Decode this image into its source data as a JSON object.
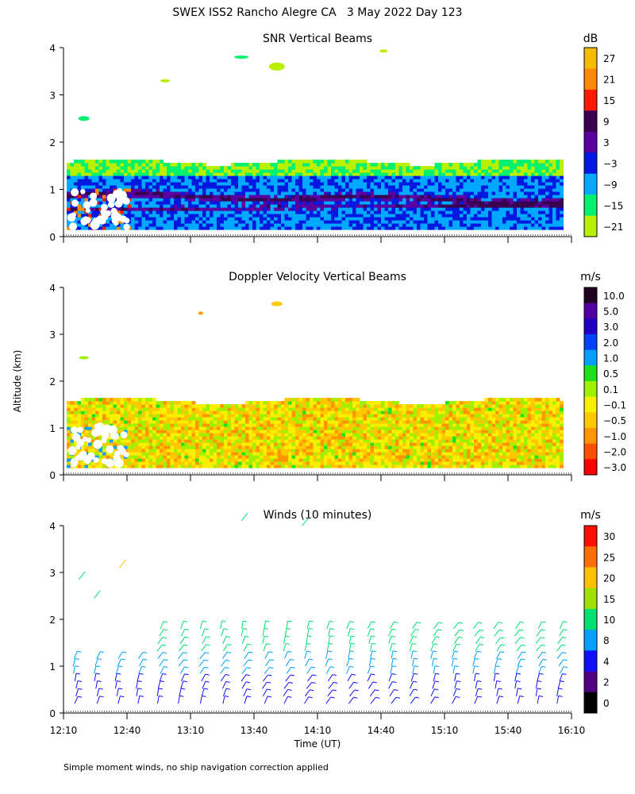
{
  "figure": {
    "title": "SWEX ISS2 Rancho Alegre CA   3 May 2022 Day 123",
    "ylabel": "Altitude (km)",
    "xlabel": "Time (UT)",
    "footnote": "Simple moment winds, no ship navigation correction applied"
  },
  "chart_data": [
    {
      "type": "heatmap",
      "title": "SNR Vertical Beams",
      "x_range": [
        "12:10",
        "16:10"
      ],
      "x_ticks": [
        "12:10",
        "12:40",
        "13:10",
        "13:40",
        "14:10",
        "14:40",
        "15:10",
        "15:40",
        "16:10"
      ],
      "x_tick_labels_shown": false,
      "ylim": [
        0,
        4
      ],
      "y_ticks": [
        "0",
        "1",
        "2",
        "3",
        "4"
      ],
      "colorbar": {
        "unit": "dB",
        "labels": [
          "27",
          "21",
          "15",
          "9",
          "3",
          "−3",
          "−9",
          "−15",
          "−21"
        ],
        "colors": [
          "#f4bc00",
          "#ff8a00",
          "#ff1a00",
          "#3a0050",
          "#5a00a0",
          "#0018e0",
          "#00a8ff",
          "#00f070",
          "#b8f000"
        ]
      }
    },
    {
      "type": "heatmap",
      "title": "Doppler Velocity Vertical Beams",
      "x_range": [
        "12:10",
        "16:10"
      ],
      "x_ticks": [
        "12:10",
        "12:40",
        "13:10",
        "13:40",
        "14:10",
        "14:40",
        "15:10",
        "15:40",
        "16:10"
      ],
      "x_tick_labels_shown": false,
      "ylim": [
        0,
        4
      ],
      "y_ticks": [
        "0",
        "1",
        "2",
        "3",
        "4"
      ],
      "colorbar": {
        "unit": "m/s",
        "labels": [
          "10.0",
          "5.0",
          "3.0",
          "2.0",
          "1.0",
          "0.5",
          "0.1",
          "−0.1",
          "−0.5",
          "−1.0",
          "−2.0",
          "−3.0"
        ],
        "colors": [
          "#200020",
          "#5000a0",
          "#2000c0",
          "#0040ff",
          "#00a0ff",
          "#20e020",
          "#a0f000",
          "#f8f000",
          "#ffc800",
          "#ff9600",
          "#ff5000",
          "#ff0000"
        ]
      }
    },
    {
      "type": "scatter",
      "title": "Winds (10 minutes)",
      "x_range": [
        "12:10",
        "16:10"
      ],
      "x_ticks": [
        "12:10",
        "12:40",
        "13:10",
        "13:40",
        "14:10",
        "14:40",
        "15:10",
        "15:40",
        "16:10"
      ],
      "ylim": [
        0,
        4
      ],
      "y_ticks": [
        "0",
        "1",
        "2",
        "3",
        "4"
      ],
      "colorbar": {
        "unit": "m/s",
        "labels": [
          "30",
          "25",
          "20",
          "15",
          "10",
          "8",
          "4",
          "2",
          "0"
        ],
        "colors": [
          "#ff1000",
          "#ff7000",
          "#ffc000",
          "#a0e000",
          "#00e070",
          "#00a0ff",
          "#1010ff",
          "#500080",
          "#000000"
        ]
      }
    }
  ]
}
